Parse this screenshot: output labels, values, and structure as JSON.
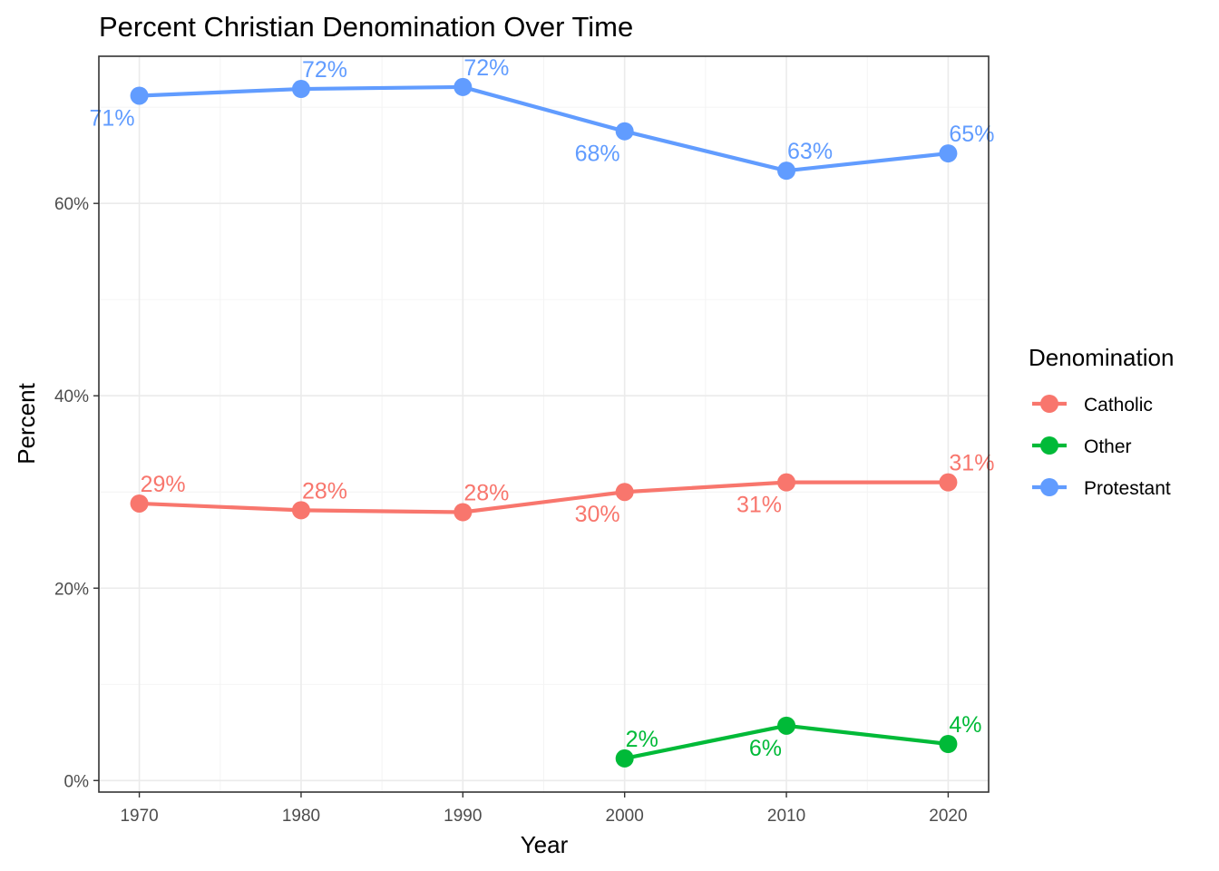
{
  "chart_data": {
    "type": "line",
    "title": "Percent Christian Denomination Over Time",
    "xlabel": "Year",
    "ylabel": "Percent",
    "xlim": [
      1967.5,
      2022.5
    ],
    "ylim": [
      -1.2,
      75.3
    ],
    "x_ticks": [
      1970,
      1980,
      1990,
      2000,
      2010,
      2020
    ],
    "x_tick_labels": [
      "1970",
      "1980",
      "1990",
      "2000",
      "2010",
      "2020"
    ],
    "y_ticks": [
      0,
      20,
      40,
      60
    ],
    "y_tick_labels": [
      "0%",
      "20%",
      "40%",
      "60%"
    ],
    "grid": true,
    "legend": {
      "title": "Denomination",
      "position": "right",
      "entries": [
        "Catholic",
        "Other",
        "Protestant"
      ]
    },
    "series": [
      {
        "name": "Catholic",
        "color": "#F8766D",
        "x": [
          1970,
          1980,
          1990,
          2000,
          2010,
          2020
        ],
        "y": [
          28.8,
          28.1,
          27.9,
          30.0,
          31.0,
          31.0
        ],
        "labels": [
          "29%",
          "28%",
          "28%",
          "30%",
          "31%",
          "31%"
        ],
        "label_pos": [
          "above",
          "above",
          "above",
          "below",
          "below",
          "above"
        ]
      },
      {
        "name": "Other",
        "color": "#00BA38",
        "x": [
          2000,
          2010,
          2020
        ],
        "y": [
          2.3,
          5.7,
          3.8
        ],
        "labels": [
          "2%",
          "6%",
          "4%"
        ],
        "label_pos": [
          "above",
          "below",
          "above"
        ]
      },
      {
        "name": "Protestant",
        "color": "#619CFF",
        "x": [
          1970,
          1980,
          1990,
          2000,
          2010,
          2020
        ],
        "y": [
          71.2,
          71.9,
          72.1,
          67.5,
          63.4,
          65.2
        ],
        "labels": [
          "71%",
          "72%",
          "72%",
          "68%",
          "63%",
          "65%"
        ],
        "label_pos": [
          "below",
          "above",
          "above",
          "below",
          "above",
          "above"
        ]
      }
    ]
  }
}
